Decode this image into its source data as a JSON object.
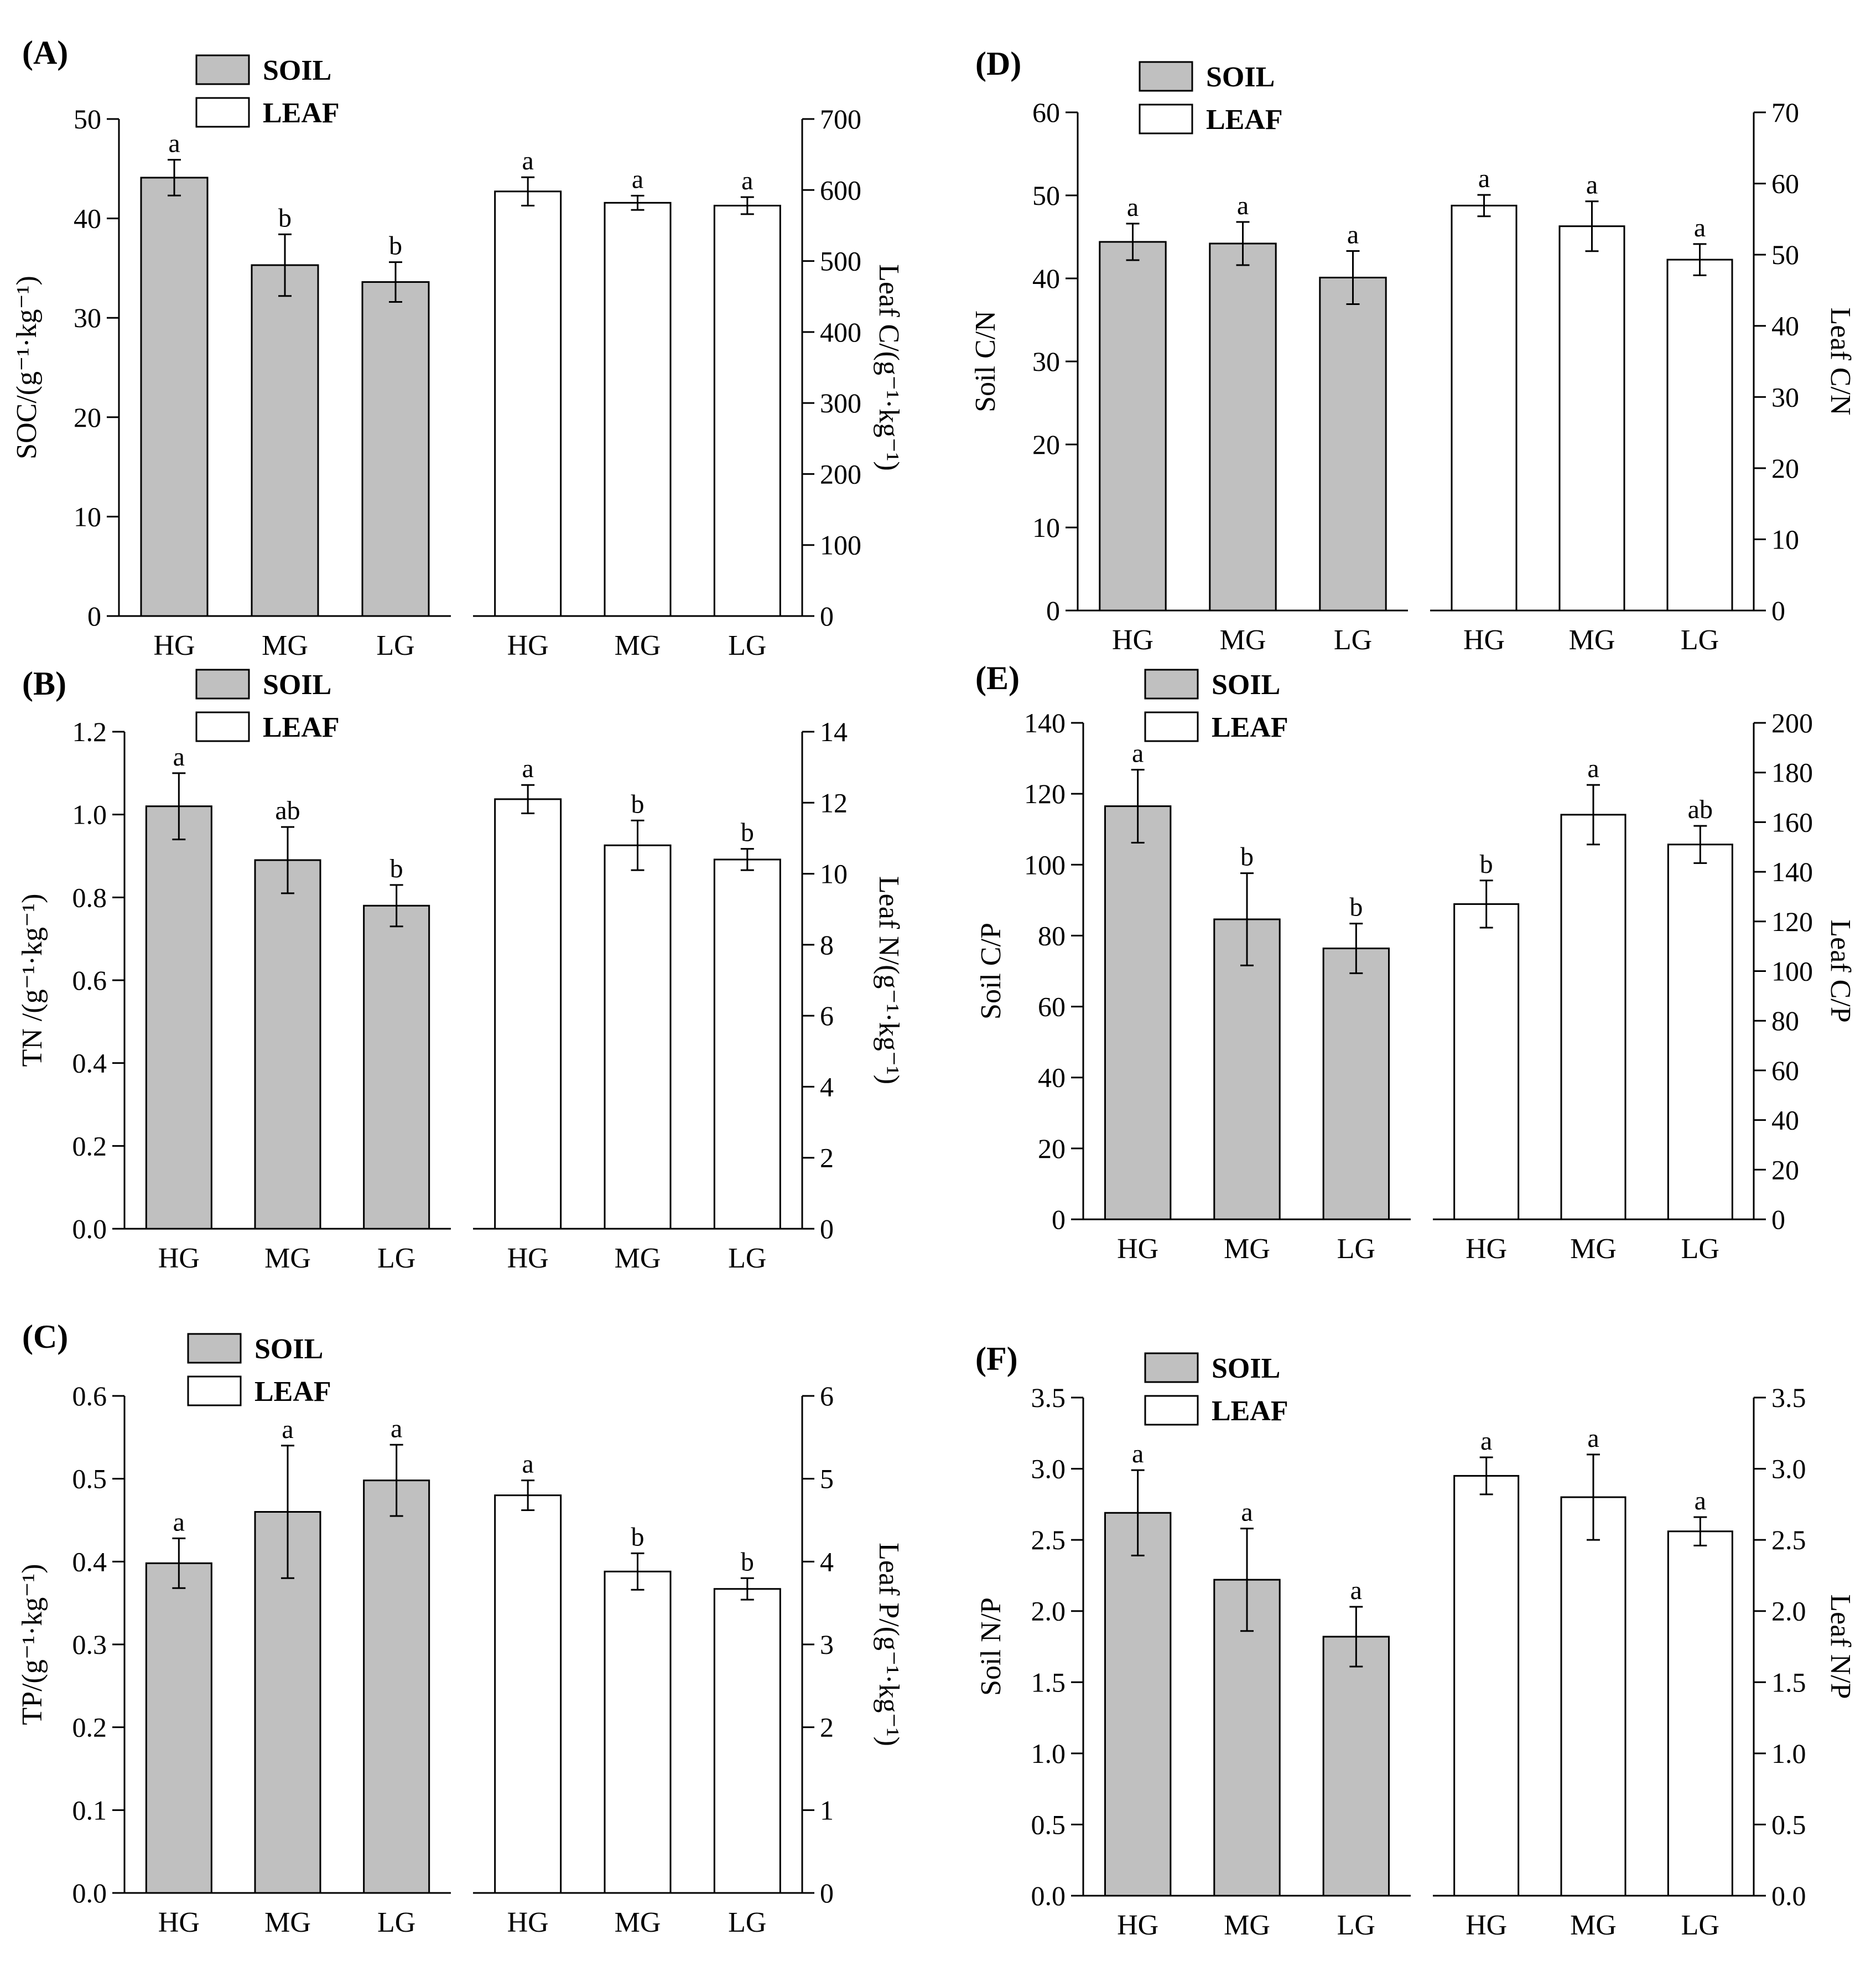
{
  "figure": {
    "colors": {
      "soil": "#c0c0c0",
      "leaf": "#ffffff",
      "stroke": "#000000"
    },
    "legend": {
      "soil": "SOIL",
      "leaf": "LEAF"
    }
  },
  "chart_data": [
    {
      "id": "A",
      "label": "(A)",
      "type": "bar",
      "categories": [
        "HG",
        "MG",
        "LG"
      ],
      "left": {
        "ylabel": "SOC/(g⁻¹·kg⁻¹)",
        "ylim": [
          0,
          50
        ],
        "ticks": [
          0,
          10,
          20,
          30,
          40,
          50
        ],
        "tick_labels": [
          "0",
          "10",
          "20",
          "30",
          "40",
          "50"
        ],
        "series": {
          "name": "SOIL",
          "values": [
            44.1,
            35.3,
            33.6
          ],
          "errors": [
            1.8,
            3.1,
            2.0
          ],
          "letters": [
            "a",
            "b",
            "b"
          ]
        }
      },
      "right": {
        "ylabel": "Leaf C/(g⁻¹·kg⁻¹)",
        "ylim": [
          0,
          700
        ],
        "ticks": [
          0,
          100,
          200,
          300,
          400,
          500,
          600,
          700
        ],
        "tick_labels": [
          "0",
          "100",
          "200",
          "300",
          "400",
          "500",
          "600",
          "700"
        ],
        "series": {
          "name": "LEAF",
          "values": [
            598,
            582,
            578
          ],
          "errors": [
            20,
            10,
            12
          ],
          "letters": [
            "a",
            "a",
            "a"
          ]
        }
      }
    },
    {
      "id": "B",
      "label": "(B)",
      "type": "bar",
      "categories": [
        "HG",
        "MG",
        "LG"
      ],
      "left": {
        "ylabel": "TN /(g⁻¹·kg⁻¹)",
        "ylim": [
          0,
          1.2
        ],
        "ticks": [
          0,
          0.2,
          0.4,
          0.6,
          0.8,
          1.0,
          1.2
        ],
        "tick_labels": [
          "0.0",
          "0.2",
          "0.4",
          "0.6",
          "0.8",
          "1.0",
          "1.2"
        ],
        "series": {
          "name": "SOIL",
          "values": [
            1.02,
            0.89,
            0.78
          ],
          "errors": [
            0.08,
            0.08,
            0.05
          ],
          "letters": [
            "a",
            "ab",
            "b"
          ]
        }
      },
      "right": {
        "ylabel": "Leaf N/(g⁻¹·kg⁻¹)",
        "ylim": [
          0,
          14
        ],
        "ticks": [
          0,
          2,
          4,
          6,
          8,
          10,
          12,
          14
        ],
        "tick_labels": [
          "0",
          "2",
          "4",
          "6",
          "8",
          "10",
          "12",
          "14"
        ],
        "series": {
          "name": "LEAF",
          "values": [
            12.1,
            10.8,
            10.4
          ],
          "errors": [
            0.4,
            0.7,
            0.3
          ],
          "letters": [
            "a",
            "b",
            "b"
          ]
        }
      }
    },
    {
      "id": "C",
      "label": "(C)",
      "type": "bar",
      "categories": [
        "HG",
        "MG",
        "LG"
      ],
      "left": {
        "ylabel": "TP/(g⁻¹·kg⁻¹)",
        "ylim": [
          0,
          0.6
        ],
        "ticks": [
          0,
          0.1,
          0.2,
          0.3,
          0.4,
          0.5,
          0.6
        ],
        "tick_labels": [
          "0.0",
          "0.1",
          "0.2",
          "0.3",
          "0.4",
          "0.5",
          "0.6"
        ],
        "series": {
          "name": "SOIL",
          "values": [
            0.398,
            0.46,
            0.498
          ],
          "errors": [
            0.03,
            0.08,
            0.043
          ],
          "letters": [
            "a",
            "a",
            "a"
          ]
        }
      },
      "right": {
        "ylabel": "Leaf P/(g⁻¹·kg⁻¹)",
        "ylim": [
          0,
          6
        ],
        "ticks": [
          0,
          1,
          2,
          3,
          4,
          5,
          6
        ],
        "tick_labels": [
          "0",
          "1",
          "2",
          "3",
          "4",
          "5",
          "6"
        ],
        "series": {
          "name": "LEAF",
          "values": [
            4.8,
            3.88,
            3.67
          ],
          "errors": [
            0.18,
            0.22,
            0.13
          ],
          "letters": [
            "a",
            "b",
            "b"
          ]
        }
      }
    },
    {
      "id": "D",
      "label": "(D)",
      "type": "bar",
      "categories": [
        "HG",
        "MG",
        "LG"
      ],
      "left": {
        "ylabel": "Soil C/N",
        "ylim": [
          0,
          60
        ],
        "ticks": [
          0,
          10,
          20,
          30,
          40,
          50,
          60
        ],
        "tick_labels": [
          "0",
          "10",
          "20",
          "30",
          "40",
          "50",
          "60"
        ],
        "series": {
          "name": "SOIL",
          "values": [
            44.4,
            44.2,
            40.1
          ],
          "errors": [
            2.2,
            2.6,
            3.2
          ],
          "letters": [
            "a",
            "a",
            "a"
          ]
        }
      },
      "right": {
        "ylabel": "Leaf C/N",
        "ylim": [
          0,
          70
        ],
        "ticks": [
          0,
          10,
          20,
          30,
          40,
          50,
          60,
          70
        ],
        "tick_labels": [
          "0",
          "10",
          "20",
          "30",
          "40",
          "50",
          "60",
          "70"
        ],
        "series": {
          "name": "LEAF",
          "values": [
            56.9,
            54.0,
            49.3
          ],
          "errors": [
            1.5,
            3.5,
            2.2
          ],
          "letters": [
            "a",
            "a",
            "a"
          ]
        }
      }
    },
    {
      "id": "E",
      "label": "(E)",
      "type": "bar",
      "categories": [
        "HG",
        "MG",
        "LG"
      ],
      "left": {
        "ylabel": "Soil C/P",
        "ylim": [
          0,
          140
        ],
        "ticks": [
          0,
          20,
          40,
          60,
          80,
          100,
          120,
          140
        ],
        "tick_labels": [
          "0",
          "20",
          "40",
          "60",
          "80",
          "100",
          "120",
          "140"
        ],
        "series": {
          "name": "SOIL",
          "values": [
            116.5,
            84.6,
            76.4
          ],
          "errors": [
            10.3,
            13.0,
            7.0
          ],
          "letters": [
            "a",
            "b",
            "b"
          ]
        }
      },
      "right": {
        "ylabel": "Leaf C/P",
        "ylim": [
          0,
          200
        ],
        "ticks": [
          0,
          20,
          40,
          60,
          80,
          100,
          120,
          140,
          160,
          180,
          200
        ],
        "tick_labels": [
          "0",
          "20",
          "40",
          "60",
          "80",
          "100",
          "120",
          "140",
          "160",
          "180",
          "200"
        ],
        "series": {
          "name": "LEAF",
          "values": [
            127,
            163,
            151
          ],
          "errors": [
            9.5,
            12,
            7.5
          ],
          "letters": [
            "b",
            "a",
            "ab"
          ]
        }
      }
    },
    {
      "id": "F",
      "label": "(F)",
      "type": "bar",
      "categories": [
        "HG",
        "MG",
        "LG"
      ],
      "left": {
        "ylabel": "Soil N/P",
        "ylim": [
          0,
          3.5
        ],
        "ticks": [
          0,
          0.5,
          1.0,
          1.5,
          2.0,
          2.5,
          3.0,
          3.5
        ],
        "tick_labels": [
          "0.0",
          "0.5",
          "1.0",
          "1.5",
          "2.0",
          "2.5",
          "3.0",
          "3.5"
        ],
        "series": {
          "name": "SOIL",
          "values": [
            2.69,
            2.22,
            1.82
          ],
          "errors": [
            0.3,
            0.36,
            0.21
          ],
          "letters": [
            "a",
            "a",
            "a"
          ]
        }
      },
      "right": {
        "ylabel": "Leaf N/P",
        "ylim": [
          0,
          3.5
        ],
        "ticks": [
          0,
          0.5,
          1.0,
          1.5,
          2.0,
          2.5,
          3.0,
          3.5
        ],
        "tick_labels": [
          "0.0",
          "0.5",
          "1.0",
          "1.5",
          "2.0",
          "2.5",
          "3.0",
          "3.5"
        ],
        "series": {
          "name": "LEAF",
          "values": [
            2.95,
            2.8,
            2.56
          ],
          "errors": [
            0.13,
            0.3,
            0.1
          ],
          "letters": [
            "a",
            "a",
            "a"
          ]
        }
      }
    }
  ]
}
